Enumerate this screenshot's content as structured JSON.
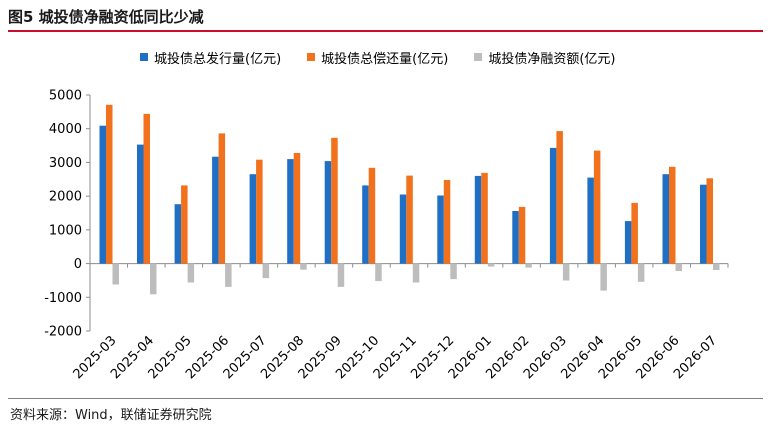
{
  "figure": {
    "title": "图5  城投债净融资低同比少减",
    "source": "资料来源：Wind，联储证券研究院"
  },
  "colors": {
    "series": [
      "#1f6fc4",
      "#f2711c",
      "#bdbdbd"
    ],
    "rule": "#c8102e"
  },
  "chart_data": {
    "type": "bar",
    "categories": [
      "2025-03",
      "2025-04",
      "2025-05",
      "2025-06",
      "2025-07",
      "2025-08",
      "2025-09",
      "2025-10",
      "2025-11",
      "2025-12",
      "2026-01",
      "2026-02",
      "2026-03",
      "2026-04",
      "2026-05",
      "2026-06",
      "2026-07"
    ],
    "series": [
      {
        "name": "城投债总发行量(亿元)",
        "values": [
          4090,
          3530,
          1760,
          3170,
          2650,
          3100,
          3040,
          2320,
          2050,
          2020,
          2600,
          1560,
          3430,
          2550,
          1260,
          2650,
          2340
        ]
      },
      {
        "name": "城投债总偿还量(亿元)",
        "values": [
          4710,
          4440,
          2320,
          3860,
          3080,
          3280,
          3730,
          2840,
          2610,
          2480,
          2690,
          1680,
          3930,
          3350,
          1800,
          2870,
          2530
        ]
      },
      {
        "name": "城投债净融资额(亿元)",
        "values": [
          -620,
          -910,
          -560,
          -690,
          -430,
          -180,
          -690,
          -520,
          -560,
          -460,
          -90,
          -120,
          -500,
          -800,
          -540,
          -220,
          -190
        ]
      }
    ],
    "ylim": [
      -2000,
      5000
    ],
    "yticks": [
      5000,
      4000,
      3000,
      2000,
      1000,
      0,
      -1000,
      -2000
    ],
    "xlabel": "",
    "ylabel": "",
    "grid": false,
    "legend_position": "top"
  }
}
